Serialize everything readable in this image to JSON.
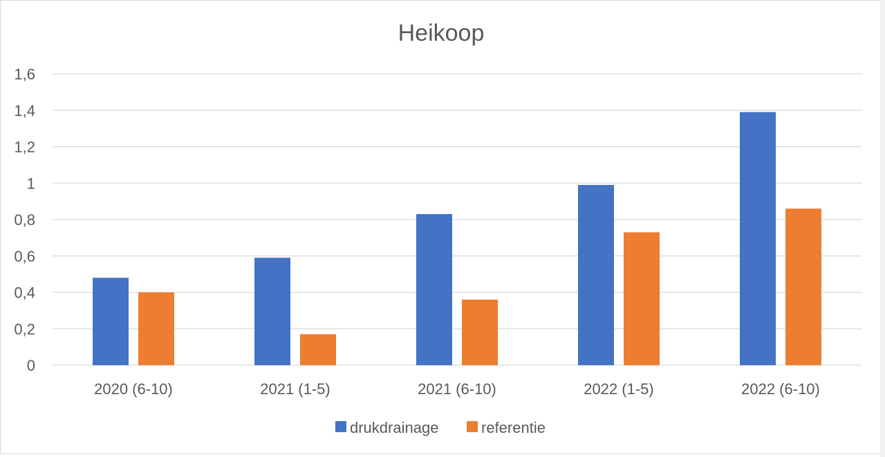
{
  "chart_data": {
    "type": "bar",
    "title": "Heikoop",
    "categories": [
      "2020 (6-10)",
      "2021 (1-5)",
      "2021 (6-10)",
      "2022 (1-5)",
      "2022 (6-10)"
    ],
    "series": [
      {
        "name": "drukdrainage",
        "color": "#4472C4",
        "values": [
          0.48,
          0.59,
          0.83,
          0.99,
          1.39
        ]
      },
      {
        "name": "referentie",
        "color": "#ED7D31",
        "values": [
          0.4,
          0.17,
          0.36,
          0.73,
          0.86
        ]
      }
    ],
    "ylim": [
      0,
      1.6
    ],
    "yticks": [
      "0",
      "0,2",
      "0,4",
      "0,6",
      "0,8",
      "1",
      "1,2",
      "1,4",
      "1,6"
    ],
    "xlabel": "",
    "ylabel": "",
    "grid": true,
    "legend_position": "bottom"
  }
}
